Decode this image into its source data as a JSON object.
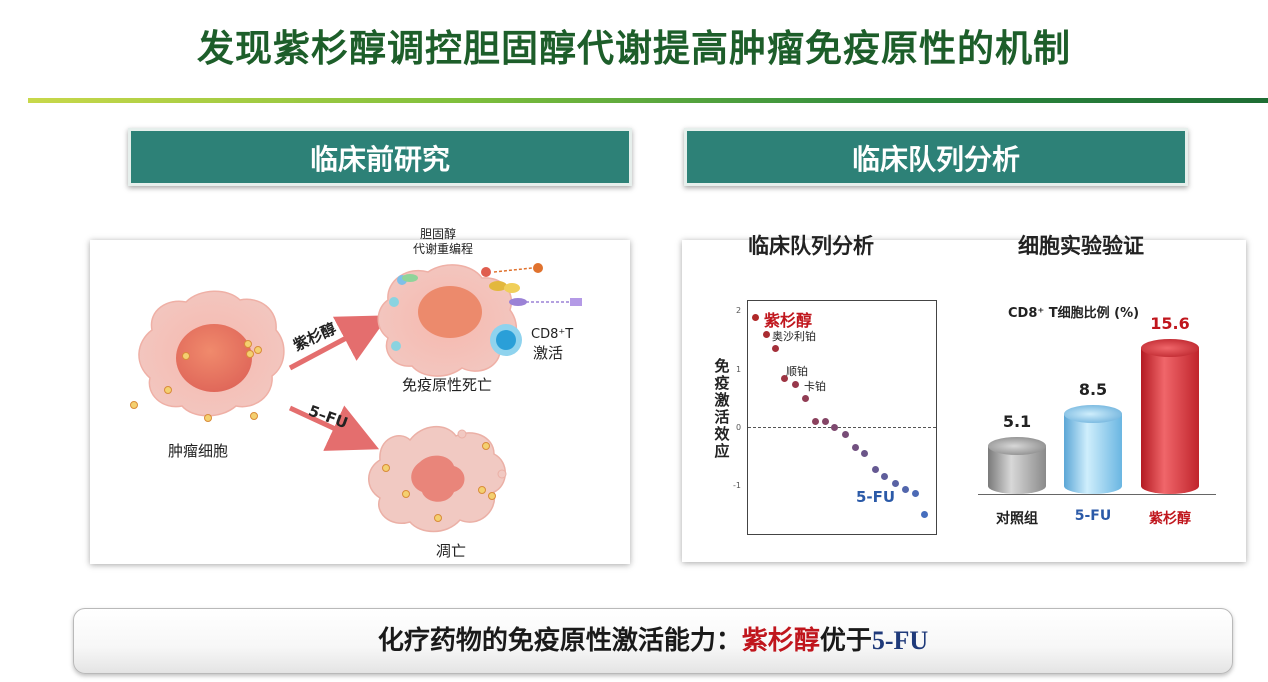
{
  "title": "发现紫杉醇调控胆固醇代谢提高肿瘤免疫原性的机制",
  "left_banner": "临床前研究",
  "right_banner": "临床队列分析",
  "preclinical": {
    "cholesterol_label_1": "胆固醇",
    "cholesterol_label_2": "代谢重编程",
    "tumor_cell_label": "肿瘤细胞",
    "paclitaxel_arrow_label": "紫杉醇",
    "fu_arrow_label": "5–FU",
    "cd8_label_1": "CD8⁺T",
    "cd8_label_2": "激活",
    "immunogenic_death_label": "免疫原性死亡",
    "withered_label": "凋亡"
  },
  "cohort_plot": {
    "heading": "临床队列分析",
    "y_axis_label": "免疫激活效应",
    "y_ticks": [
      "2",
      "1",
      "0",
      "-1"
    ],
    "labels": {
      "paclitaxel": "紫杉醇",
      "oxaliplatin": "奥沙利铂",
      "cisplatin": "顺铂",
      "carboplatin": "卡铂",
      "fu": "5-FU"
    }
  },
  "chart_data": {
    "type": "bar",
    "heading": "细胞实验验证",
    "title": "CD8⁺ T细胞比例 (%)",
    "categories": [
      "对照组",
      "5-FU",
      "紫杉醇"
    ],
    "values": [
      5.1,
      8.5,
      15.6
    ],
    "value_labels": [
      "5.1",
      "8.5",
      "15.6"
    ],
    "colors": [
      "#9a9a9a",
      "#7cc3e8",
      "#d3242b"
    ],
    "ylim": [
      0,
      16
    ]
  },
  "summary": {
    "prefix": "化疗药物的免疫原性激活能力：",
    "highlight": "紫杉醇",
    "middle": "优于",
    "suffix": "5-FU"
  }
}
